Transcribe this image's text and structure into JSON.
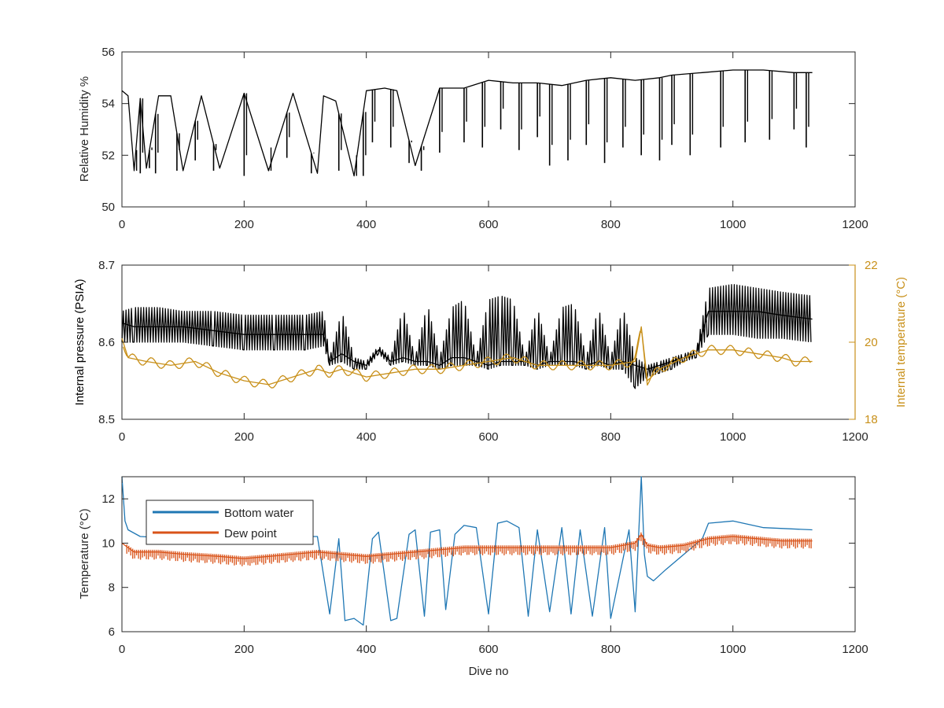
{
  "chart_data": [
    {
      "type": "line",
      "xlabel": "",
      "ylabel": "Relative Humidity %",
      "xlim": [
        0,
        1200
      ],
      "ylim": [
        50,
        56
      ],
      "xticks": [
        0,
        200,
        400,
        600,
        800,
        1000,
        1200
      ],
      "yticks": [
        50,
        52,
        54,
        56
      ],
      "series": [
        {
          "color": "#000000",
          "x": [
            0,
            10,
            20,
            30,
            40,
            60,
            80,
            100,
            130,
            160,
            200,
            240,
            280,
            320,
            330,
            350,
            380,
            400,
            430,
            450,
            480,
            520,
            560,
            600,
            640,
            680,
            720,
            760,
            800,
            840,
            880,
            900,
            950,
            1000,
            1050,
            1100,
            1130
          ],
          "y": [
            54.5,
            54.3,
            51.4,
            54.2,
            51.5,
            54.3,
            54.3,
            51.4,
            54.3,
            51.5,
            54.4,
            51.4,
            54.4,
            51.3,
            54.3,
            54.1,
            51.2,
            54.5,
            54.6,
            54.5,
            51.6,
            54.6,
            54.6,
            54.9,
            54.8,
            54.8,
            54.7,
            54.9,
            55.0,
            54.9,
            55.0,
            55.1,
            55.2,
            55.3,
            55.3,
            55.2,
            55.2
          ],
          "dips": [
            [
              20,
              51.4
            ],
            [
              30,
              51.3
            ],
            [
              45,
              51.5
            ],
            [
              55,
              51.3
            ],
            [
              90,
              51.4
            ],
            [
              120,
              51.8
            ],
            [
              150,
              51.4
            ],
            [
              200,
              51.2
            ],
            [
              240,
              51.5
            ],
            [
              270,
              51.9
            ],
            [
              310,
              51.3
            ],
            [
              355,
              51.4
            ],
            [
              380,
              51.2
            ],
            [
              395,
              51.2
            ],
            [
              410,
              52.5
            ],
            [
              440,
              52.3
            ],
            [
              470,
              51.7
            ],
            [
              490,
              51.4
            ],
            [
              520,
              52.1
            ],
            [
              560,
              52.5
            ],
            [
              590,
              52.3
            ],
            [
              620,
              53.0
            ],
            [
              650,
              52.2
            ],
            [
              680,
              52.7
            ],
            [
              700,
              51.6
            ],
            [
              730,
              51.8
            ],
            [
              760,
              52.4
            ],
            [
              790,
              51.7
            ],
            [
              820,
              52.3
            ],
            [
              850,
              52.0
            ],
            [
              880,
              51.8
            ],
            [
              900,
              52.4
            ],
            [
              930,
              52.0
            ],
            [
              980,
              52.3
            ],
            [
              1020,
              52.5
            ],
            [
              1060,
              52.6
            ],
            [
              1100,
              53.0
            ],
            [
              1120,
              52.3
            ]
          ]
        }
      ]
    },
    {
      "type": "line",
      "xlabel": "",
      "ylabel": "Internal pressure (PSIA)",
      "ylabel_right": "Internal temperature (°C)",
      "xlim": [
        0,
        1200
      ],
      "ylim": [
        8.5,
        8.7
      ],
      "ylim_right": [
        18,
        22
      ],
      "xticks": [
        0,
        200,
        400,
        600,
        800,
        1000,
        1200
      ],
      "yticks": [
        8.5,
        8.6,
        8.7
      ],
      "yticks_right": [
        18,
        20,
        22
      ],
      "series": [
        {
          "color": "#000000",
          "axis": "left",
          "x": [
            0,
            20,
            60,
            100,
            150,
            200,
            250,
            300,
            330,
            340,
            360,
            380,
            400,
            420,
            440,
            460,
            480,
            500,
            520,
            540,
            560,
            580,
            600,
            620,
            640,
            660,
            680,
            700,
            720,
            740,
            760,
            780,
            800,
            820,
            840,
            860,
            880,
            900,
            920,
            940,
            960,
            1000,
            1040,
            1080,
            1130
          ],
          "y": [
            8.625,
            8.62,
            8.62,
            8.62,
            8.615,
            8.61,
            8.61,
            8.61,
            8.61,
            8.575,
            8.585,
            8.575,
            8.57,
            8.59,
            8.575,
            8.58,
            8.575,
            8.575,
            8.57,
            8.58,
            8.58,
            8.575,
            8.57,
            8.575,
            8.575,
            8.575,
            8.57,
            8.575,
            8.575,
            8.575,
            8.57,
            8.575,
            8.57,
            8.575,
            8.57,
            8.565,
            8.57,
            8.575,
            8.58,
            8.585,
            8.64,
            8.64,
            8.64,
            8.635,
            8.63
          ],
          "upper": [
            8.64,
            8.645,
            8.645,
            8.64,
            8.64,
            8.635,
            8.635,
            8.635,
            8.64,
            8.58,
            8.64,
            8.58,
            8.575,
            8.595,
            8.58,
            8.645,
            8.58,
            8.65,
            8.58,
            8.645,
            8.655,
            8.58,
            8.655,
            8.66,
            8.655,
            8.58,
            8.645,
            8.58,
            8.645,
            8.65,
            8.58,
            8.645,
            8.58,
            8.645,
            8.58,
            8.57,
            8.575,
            8.58,
            8.585,
            8.59,
            8.67,
            8.675,
            8.67,
            8.665,
            8.66
          ],
          "lower": [
            8.6,
            8.6,
            8.6,
            8.6,
            8.595,
            8.59,
            8.59,
            8.59,
            8.595,
            8.57,
            8.575,
            8.565,
            8.565,
            8.585,
            8.57,
            8.575,
            8.57,
            8.57,
            8.565,
            8.57,
            8.57,
            8.57,
            8.565,
            8.57,
            8.57,
            8.57,
            8.565,
            8.57,
            8.57,
            8.57,
            8.565,
            8.57,
            8.565,
            8.565,
            8.54,
            8.555,
            8.56,
            8.565,
            8.575,
            8.58,
            8.61,
            8.61,
            8.605,
            8.605,
            8.6
          ]
        },
        {
          "color": "#c8901a",
          "axis": "right",
          "x": [
            0,
            10,
            40,
            80,
            120,
            160,
            200,
            240,
            280,
            320,
            340,
            360,
            380,
            400,
            440,
            480,
            520,
            560,
            600,
            640,
            680,
            720,
            760,
            800,
            840,
            850,
            860,
            880,
            920,
            960,
            1000,
            1040,
            1080,
            1100,
            1130
          ],
          "y": [
            20.1,
            19.6,
            19.5,
            19.4,
            19.5,
            19.2,
            19.0,
            18.9,
            19.1,
            19.3,
            19.2,
            19.3,
            19.2,
            19.1,
            19.2,
            19.3,
            19.3,
            19.4,
            19.5,
            19.6,
            19.4,
            19.4,
            19.4,
            19.4,
            19.5,
            20.4,
            19.0,
            19.3,
            19.6,
            19.8,
            19.8,
            19.7,
            19.6,
            19.5,
            19.5
          ]
        }
      ]
    },
    {
      "type": "line",
      "xlabel": "Dive no",
      "ylabel": "Temperature (°C)",
      "xlim": [
        0,
        1200
      ],
      "ylim": [
        6,
        13
      ],
      "xticks": [
        0,
        200,
        400,
        600,
        800,
        1000,
        1200
      ],
      "yticks": [
        6,
        8,
        10,
        12
      ],
      "legend": "top-left",
      "series": [
        {
          "name": "Bottom water",
          "color": "#1f77b4",
          "x": [
            0,
            5,
            10,
            30,
            100,
            200,
            300,
            320,
            340,
            355,
            365,
            380,
            395,
            410,
            420,
            440,
            450,
            470,
            480,
            495,
            505,
            520,
            530,
            545,
            560,
            580,
            600,
            615,
            630,
            650,
            665,
            680,
            700,
            720,
            735,
            750,
            770,
            790,
            800,
            830,
            840,
            850,
            855,
            860,
            870,
            890,
            920,
            950,
            960,
            1000,
            1050,
            1130
          ],
          "y": [
            13.0,
            11.0,
            10.6,
            10.3,
            10.2,
            10.2,
            10.3,
            10.3,
            6.8,
            10.2,
            6.5,
            6.6,
            6.3,
            10.2,
            10.5,
            6.5,
            6.6,
            10.4,
            10.6,
            6.7,
            10.5,
            10.6,
            7.0,
            10.4,
            10.8,
            10.7,
            6.8,
            10.9,
            11.0,
            10.7,
            6.7,
            10.6,
            6.9,
            10.7,
            6.8,
            10.6,
            6.7,
            10.7,
            6.6,
            10.6,
            6.9,
            13.0,
            9.5,
            8.5,
            8.3,
            8.8,
            9.5,
            10.2,
            10.9,
            11.0,
            10.7,
            10.6
          ]
        },
        {
          "name": "Dew point",
          "color": "#d95319",
          "x": [
            0,
            10,
            20,
            60,
            100,
            160,
            200,
            240,
            280,
            320,
            360,
            400,
            440,
            480,
            520,
            560,
            600,
            640,
            680,
            720,
            760,
            800,
            840,
            850,
            860,
            880,
            920,
            960,
            1000,
            1040,
            1080,
            1130
          ],
          "y": [
            10.0,
            9.8,
            9.6,
            9.6,
            9.5,
            9.4,
            9.3,
            9.4,
            9.5,
            9.6,
            9.5,
            9.4,
            9.5,
            9.6,
            9.7,
            9.8,
            9.8,
            9.8,
            9.8,
            9.8,
            9.8,
            9.8,
            10.0,
            10.4,
            9.9,
            9.8,
            9.9,
            10.2,
            10.3,
            10.2,
            10.1,
            10.1
          ]
        }
      ]
    }
  ]
}
